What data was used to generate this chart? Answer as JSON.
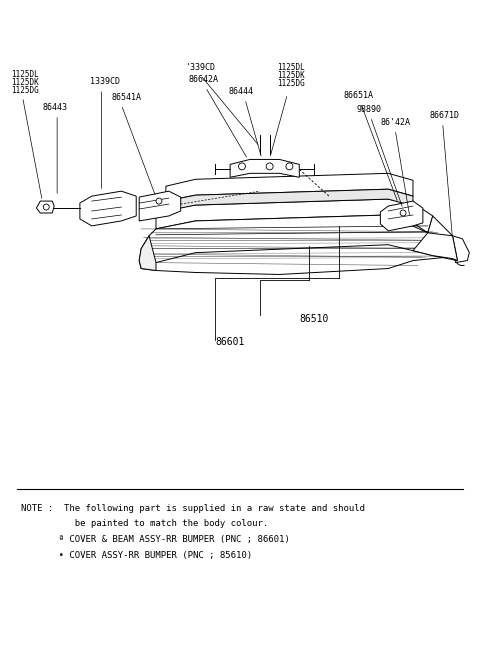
{
  "bg_color": "#ffffff",
  "fig_width": 4.8,
  "fig_height": 6.57,
  "dpi": 100,
  "note_line1": "NOTE :  The following part is supplied in a raw state and should",
  "note_line2": "          be painted to match the body colour.",
  "note_line3": "       ª COVER & BEAM ASSY-RR BUMPER (PNC ; 86601)",
  "note_line4": "       • COVER ASSY-RR BUMPER (PNC ; 85610)"
}
